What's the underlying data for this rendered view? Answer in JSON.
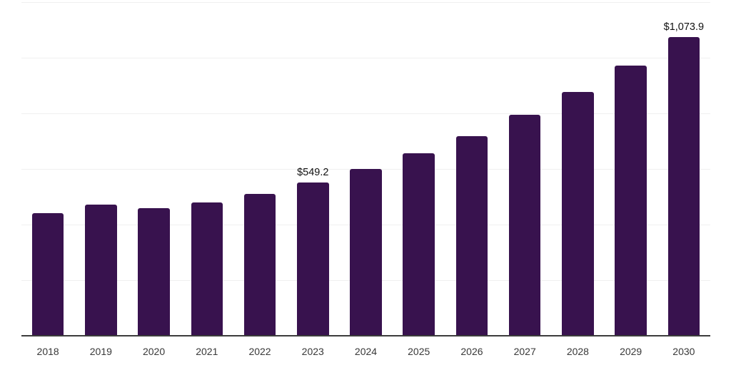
{
  "chart_data": {
    "type": "bar",
    "title": "",
    "xlabel": "",
    "ylabel": "",
    "categories": [
      "2018",
      "2019",
      "2020",
      "2021",
      "2022",
      "2023",
      "2024",
      "2025",
      "2026",
      "2027",
      "2028",
      "2029",
      "2030"
    ],
    "values": [
      440,
      470,
      457,
      477,
      508,
      549.2,
      598,
      655,
      717,
      794,
      875,
      971,
      1073.9
    ],
    "data_labels": [
      null,
      null,
      null,
      null,
      null,
      "$549.2",
      null,
      null,
      null,
      null,
      null,
      null,
      "$1,073.9"
    ],
    "ylim": [
      0,
      1200
    ],
    "grid_step": 200,
    "grid": "horizontal-only",
    "legend": "none",
    "colors": {
      "bar": "#38124e",
      "gridline": "#f0f0f0",
      "axis": "#3c3c3c",
      "data_label": "#111111",
      "tick_label": "#383838",
      "background": "#ffffff"
    }
  }
}
